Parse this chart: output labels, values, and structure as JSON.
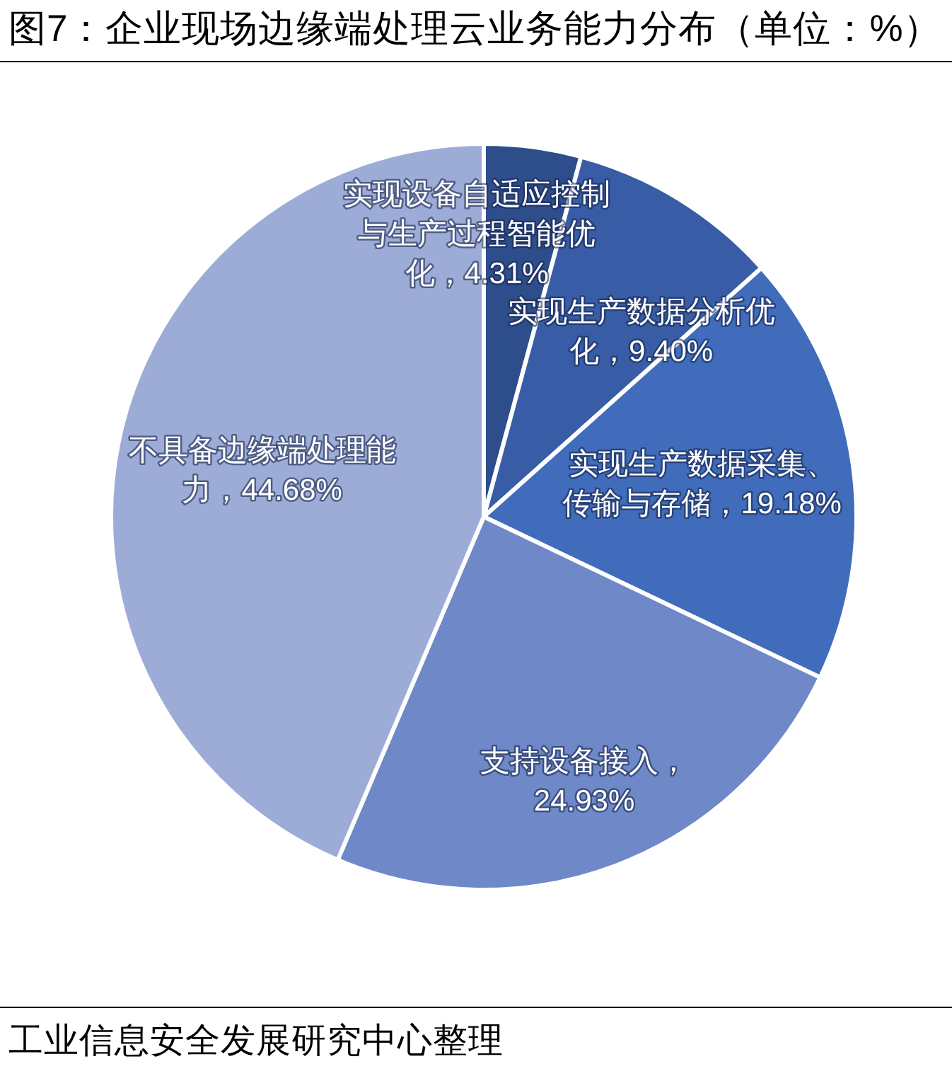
{
  "chart_data": {
    "type": "pie",
    "title": "图7：企业现场边缘端处理云业务能力分布（单位：%）",
    "categories": [
      "实现设备自适应控制与生产过程智能优化",
      "实现生产数据分析优化",
      "实现生产数据采集、传输与存储",
      "支持设备接入",
      "不具备边缘端处理能力"
    ],
    "values": [
      4.31,
      9.4,
      19.18,
      24.93,
      44.68
    ],
    "colors": [
      "#2e4d8b",
      "#385da6",
      "#406cbb",
      "#6e88c8",
      "#9dacd7"
    ],
    "value_labels": [
      "，4.31%",
      "，9.40%",
      "，19.18%",
      "，24.93%",
      "，44.68%"
    ],
    "annotations": [
      "工业信息安全发展研究中心整理"
    ]
  }
}
